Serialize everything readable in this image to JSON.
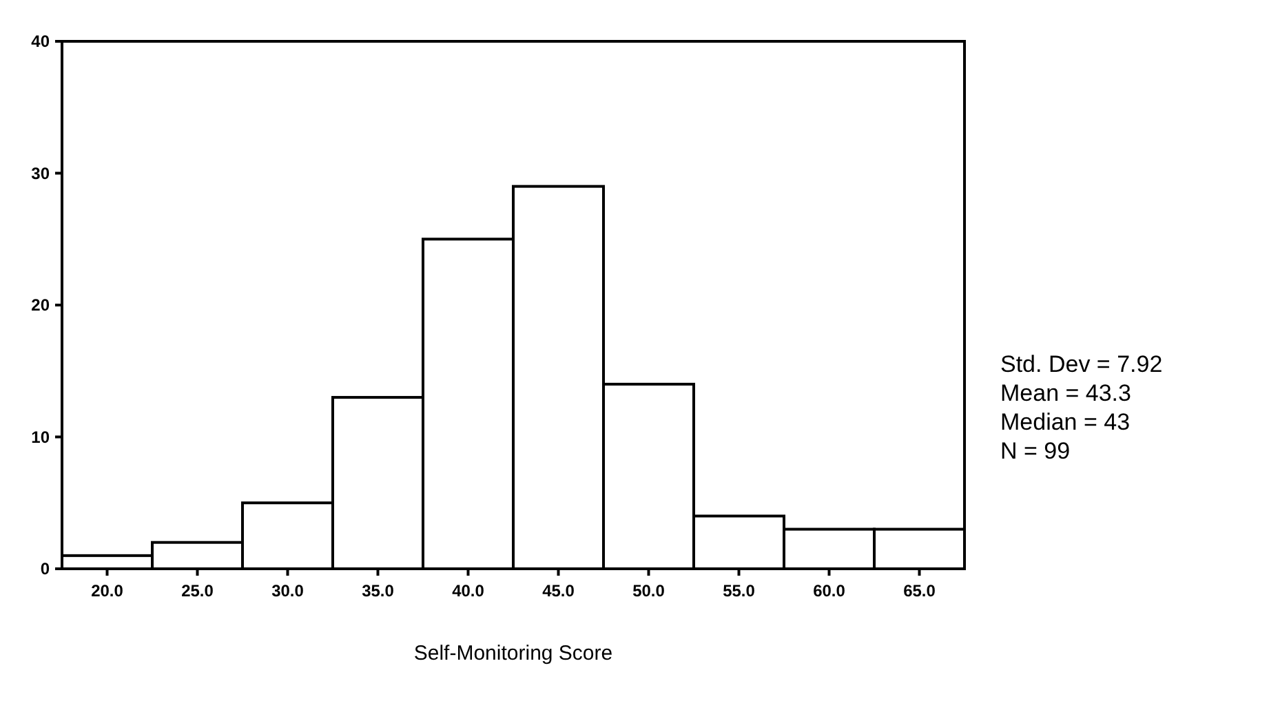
{
  "chart_data": {
    "type": "histogram",
    "xlabel": "Self-Monitoring Score",
    "bins": [
      17.5,
      22.5,
      27.5,
      32.5,
      37.5,
      42.5,
      47.5,
      52.5,
      57.5,
      62.5,
      67.5
    ],
    "values": [
      1,
      2,
      5,
      13,
      25,
      29,
      14,
      4,
      3,
      3
    ],
    "color": "#ffffff",
    "xlim": [
      17.5,
      67.5
    ],
    "xticks": [
      {
        "value": 20,
        "label": "20.0"
      },
      {
        "value": 25,
        "label": "25.0"
      },
      {
        "value": 30,
        "label": "30.0"
      },
      {
        "value": 35,
        "label": "35.0"
      },
      {
        "value": 40,
        "label": "40.0"
      },
      {
        "value": 45,
        "label": "45.0"
      },
      {
        "value": 50,
        "label": "50.0"
      },
      {
        "value": 55,
        "label": "55.0"
      },
      {
        "value": 60,
        "label": "60.0"
      },
      {
        "value": 65,
        "label": "65.0"
      }
    ],
    "ylim": [
      0,
      40
    ],
    "yticks": [
      0,
      10,
      20,
      30,
      40
    ],
    "annotations": [
      "Std. Dev = 7.92",
      "Mean = 43.3",
      "Median = 43",
      "N = 99"
    ]
  }
}
